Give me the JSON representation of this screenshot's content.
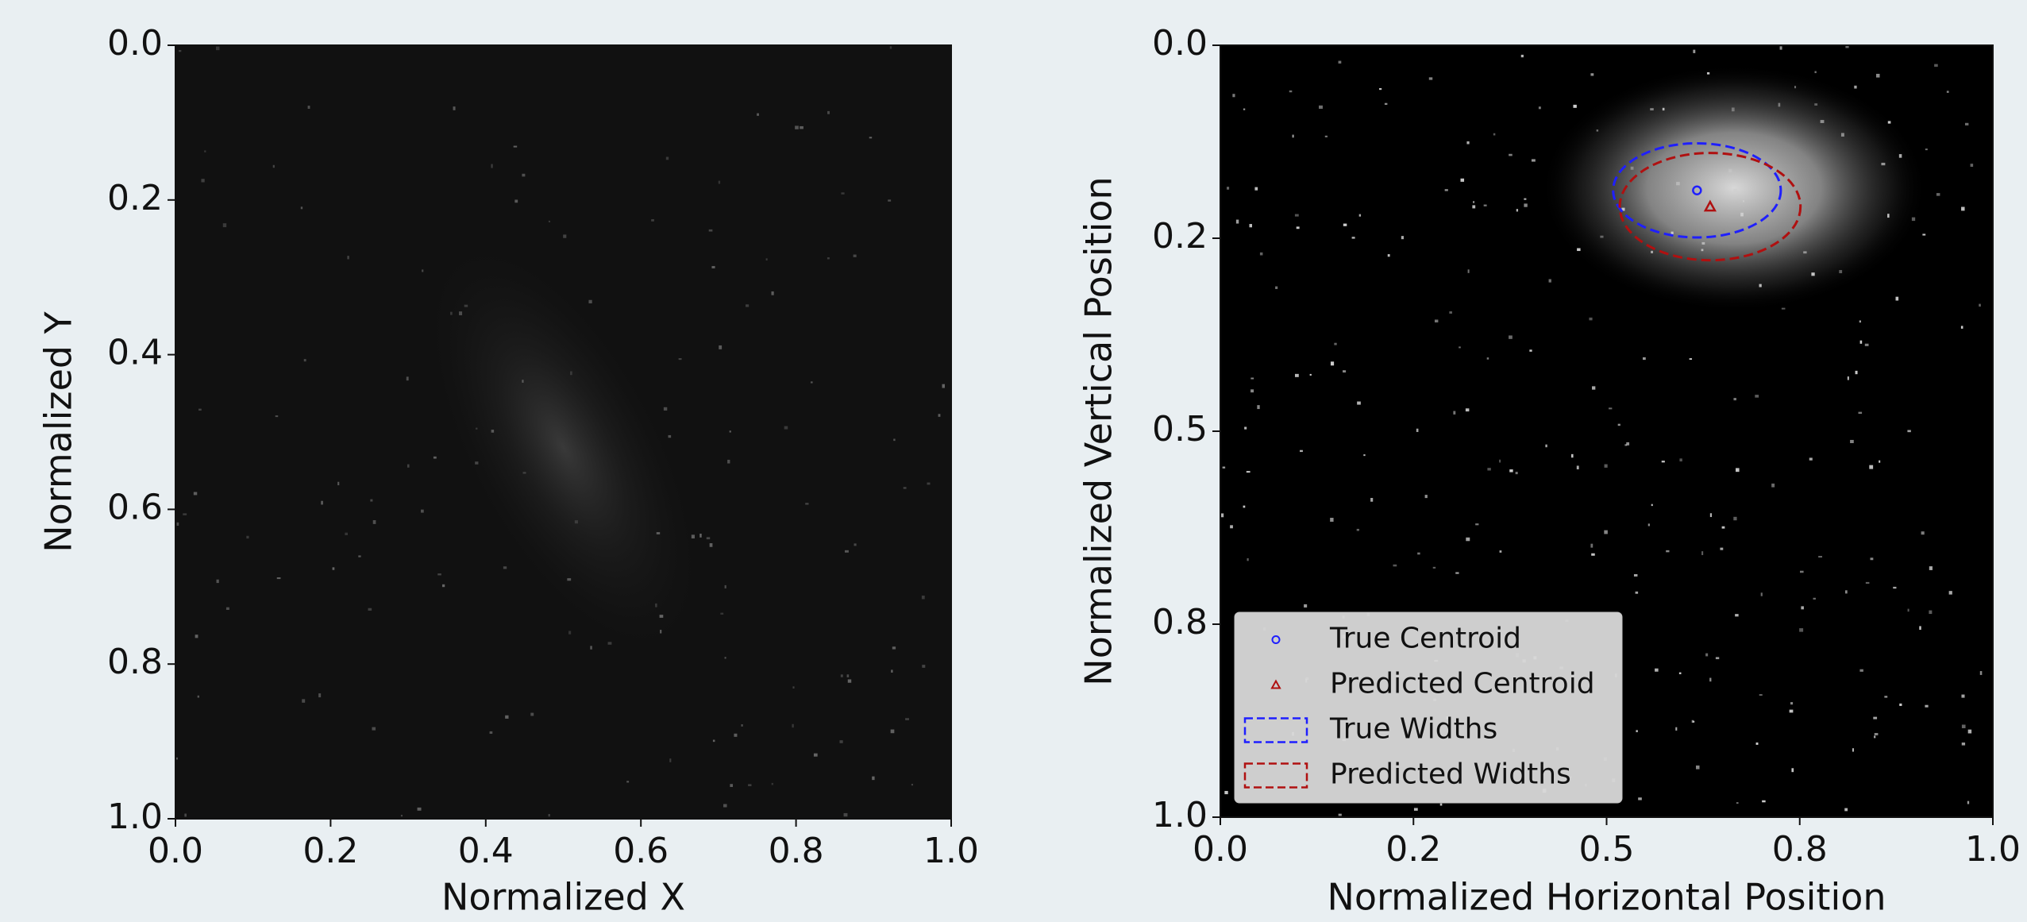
{
  "chart_data": [
    {
      "type": "image",
      "xlabel": "Normalized X",
      "ylabel": "Normalized Y",
      "xlim": [
        0,
        1
      ],
      "ylim": [
        1,
        0
      ],
      "xticks": [
        {
          "value": 0,
          "label": "0.0"
        },
        0.2,
        0.4,
        0.6,
        0.8,
        {
          "value": 1,
          "label": "1.0"
        }
      ],
      "yticks": [
        {
          "value": 0,
          "label": "0.0"
        },
        0.2,
        0.4,
        0.6,
        0.8,
        {
          "value": 1,
          "label": "1.0"
        }
      ]
    },
    {
      "type": "scatter",
      "xlabel": "Normalized Horizontal Position",
      "ylabel": "Normalized Vertical Position",
      "xlim": [
        0,
        1
      ],
      "ylim": [
        1,
        0
      ],
      "xticks": [
        {
          "value": 0,
          "label": "0.0"
        },
        {
          "value": 0.25,
          "label": "0.2"
        },
        0.5,
        {
          "value": 0.75,
          "label": "0.8"
        },
        {
          "value": 1,
          "label": "1.0"
        }
      ],
      "yticks": [
        {
          "value": 0,
          "label": "0.0"
        },
        {
          "value": 0.25,
          "label": "0.2"
        },
        0.5,
        {
          "value": 0.75,
          "label": "0.8"
        },
        {
          "value": 1,
          "label": "1.0"
        }
      ],
      "series": [
        {
          "name": "True Centroid",
          "color": "#1f1fff",
          "marker": "circle",
          "x": [
            0.617
          ],
          "y": [
            0.188
          ]
        },
        {
          "name": "Predicted Centroid",
          "color": "#b01010",
          "marker": "triangle",
          "x": [
            0.634
          ],
          "y": [
            0.209
          ]
        }
      ],
      "ellipses": [
        {
          "name": "True Widths",
          "color": "#1f1fff",
          "x": 0.617,
          "y": 0.188,
          "width": 0.217,
          "height": 0.122
        },
        {
          "name": "Predicted Widths",
          "color": "#b01010",
          "x": 0.634,
          "y": 0.209,
          "width": 0.234,
          "height": 0.139
        }
      ],
      "legend": "lower left"
    }
  ]
}
